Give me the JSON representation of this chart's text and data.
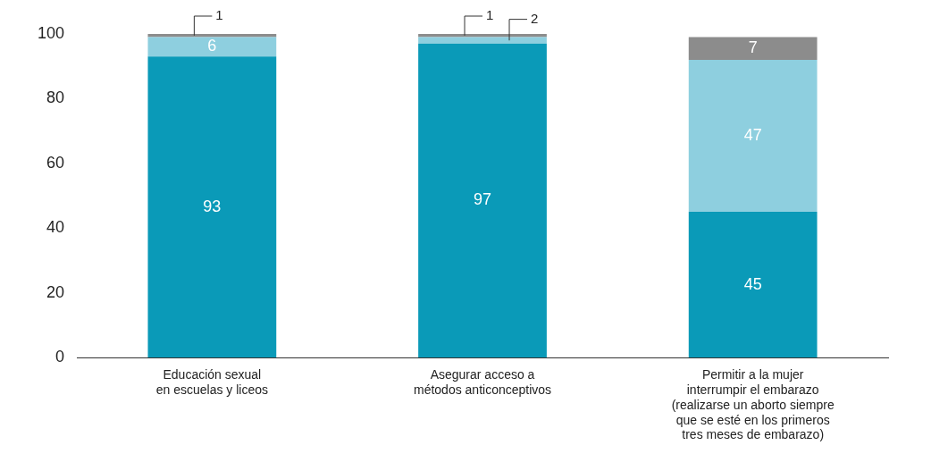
{
  "chart_data": {
    "type": "bar",
    "stacked": true,
    "categories": [
      "Educación sexual\nen escuelas y liceos",
      "Asegurar acceso a\nmétodos anticonceptivos",
      "Permitir a la mujer\ninterrumpir el embarazo\n(realizarse un aborto siempre\nque se esté en los primeros\ntres meses de embarazo)"
    ],
    "series": [
      {
        "color": "#0a9ab8",
        "values": [
          93,
          97,
          45
        ],
        "value_labels": [
          "93",
          "97",
          "45"
        ]
      },
      {
        "color": "#8ecfdf",
        "values": [
          6,
          2,
          47
        ],
        "value_labels": [
          "6",
          "2",
          "47"
        ]
      },
      {
        "color": "#8c8c8c",
        "values": [
          1,
          1,
          7
        ],
        "value_labels": [
          "1",
          "1",
          "7"
        ]
      }
    ],
    "ylim": [
      0,
      100
    ],
    "yticks": [
      0,
      20,
      40,
      60,
      80,
      100
    ],
    "grid": false,
    "legend": false
  }
}
